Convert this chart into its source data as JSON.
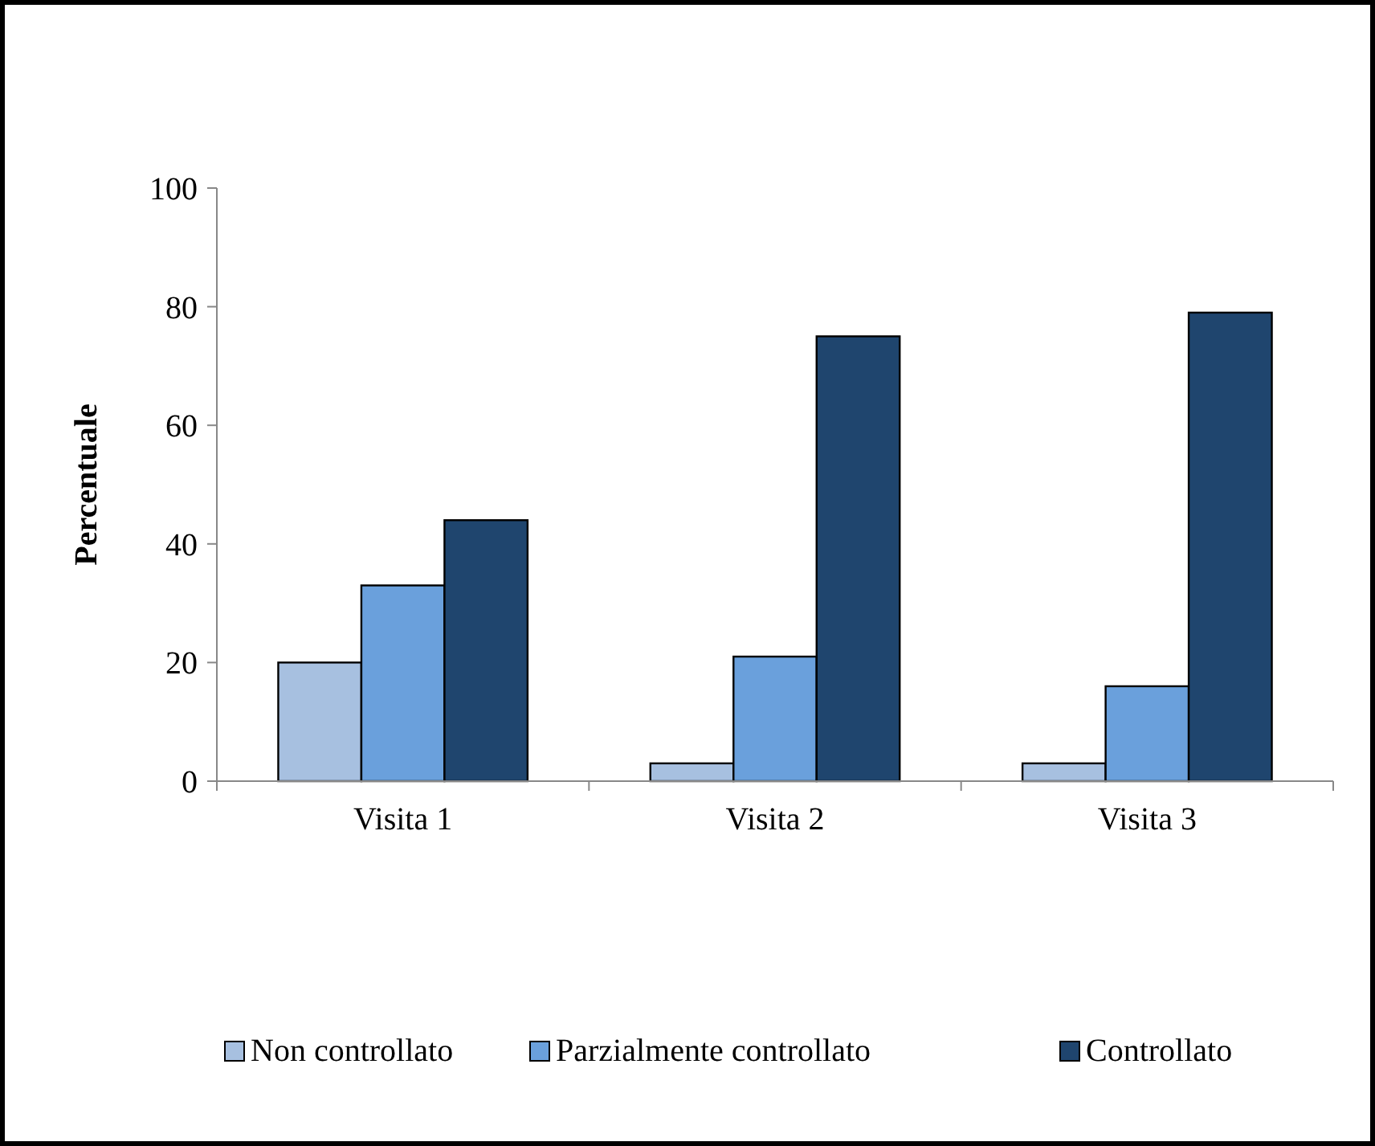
{
  "chart_data": {
    "type": "bar",
    "ylabel": "Percentuale",
    "categories": [
      "Visita 1",
      "Visita 2",
      "Visita 3"
    ],
    "series": [
      {
        "name": "Non controllato",
        "color": "#a7c0e0",
        "values": [
          20,
          3,
          3
        ]
      },
      {
        "name": "Parzialmente controllato",
        "color": "#6aa0dc",
        "values": [
          33,
          21,
          16
        ]
      },
      {
        "name": "Controllato",
        "color": "#1f456e",
        "values": [
          44,
          75,
          79
        ]
      }
    ],
    "ylim": [
      0,
      100
    ],
    "yticks": [
      0,
      20,
      40,
      60,
      80,
      100
    ],
    "legend": "bottom"
  }
}
